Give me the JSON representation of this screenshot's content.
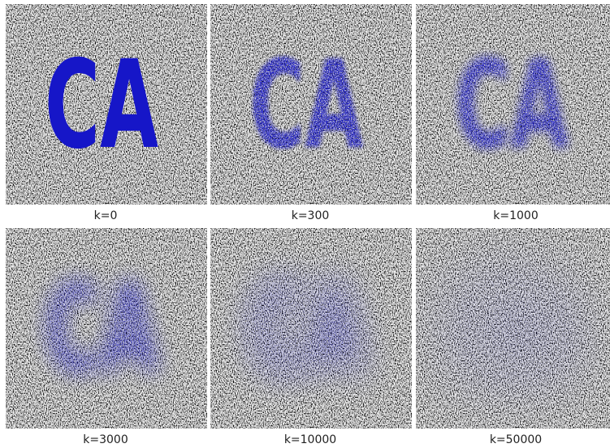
{
  "image_text": "CA",
  "panels": [
    {
      "label": "k=0"
    },
    {
      "label": "k=300"
    },
    {
      "label": "k=1000"
    },
    {
      "label": "k=3000"
    },
    {
      "label": "k=10000"
    },
    {
      "label": "k=50000"
    }
  ]
}
